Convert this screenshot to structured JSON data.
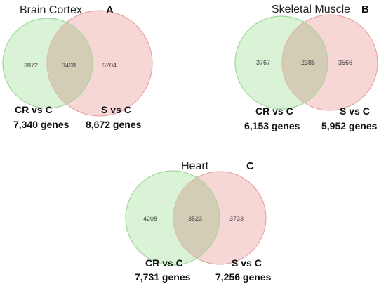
{
  "colors": {
    "set_a_fill": "#daf2d6",
    "set_a_stroke": "#9ed69a",
    "set_b_fill": "#f7d6d6",
    "set_b_stroke": "#e49a9a",
    "overlap_fill": "#d3cdb6"
  },
  "panels": [
    {
      "title": "Brain Cortex",
      "letter": "A",
      "left_only": "3872",
      "overlap": "3468",
      "right_only": "5204",
      "left_label": "CR vs C",
      "left_total": "7,340 genes",
      "right_label": "S vs C",
      "right_total": "8,672 genes"
    },
    {
      "title": "Skeletal Muscle",
      "letter": "B",
      "left_only": "3767",
      "overlap": "2386",
      "right_only": "3566",
      "left_label": "CR vs C",
      "left_total": "6,153 genes",
      "right_label": "S vs C",
      "right_total": "5,952 genes"
    },
    {
      "title": "Heart",
      "letter": "C",
      "left_only": "4208",
      "overlap": "3523",
      "right_only": "3733",
      "left_label": "CR vs C",
      "left_total": "7,731 genes",
      "right_label": "S vs C",
      "right_total": "7,256 genes"
    }
  ]
}
